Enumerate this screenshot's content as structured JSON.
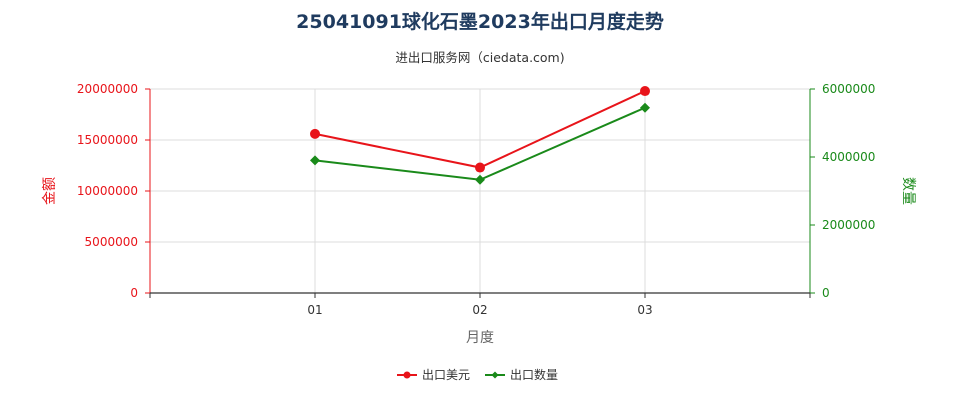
{
  "chart_data": {
    "type": "line",
    "title": "25041091球化石墨2023年出口月度走势",
    "subtitle": "进出口服务网（ciedata.com)",
    "xlabel": "月度",
    "ylabel_left": "金额",
    "ylabel_right": "数量",
    "categories": [
      "01",
      "02",
      "03"
    ],
    "left_axis": {
      "range": [
        0,
        20000000
      ],
      "ticks": [
        "0",
        "5000000",
        "10000000",
        "15000000",
        "20000000"
      ],
      "color": "#e8141a"
    },
    "right_axis": {
      "range": [
        0,
        6000000
      ],
      "ticks": [
        "0",
        "2000000",
        "4000000",
        "6000000"
      ],
      "color": "#1a8a1a"
    },
    "series": [
      {
        "name": "出口美元",
        "axis": "left",
        "color": "#e8141a",
        "marker": "circle",
        "values": [
          15600000,
          12300000,
          19800000
        ]
      },
      {
        "name": "出口数量",
        "axis": "right",
        "color": "#1a8a1a",
        "marker": "diamond",
        "values": [
          3900000,
          3330000,
          5450000
        ]
      }
    ],
    "grid": true,
    "legend_position": "bottom"
  }
}
